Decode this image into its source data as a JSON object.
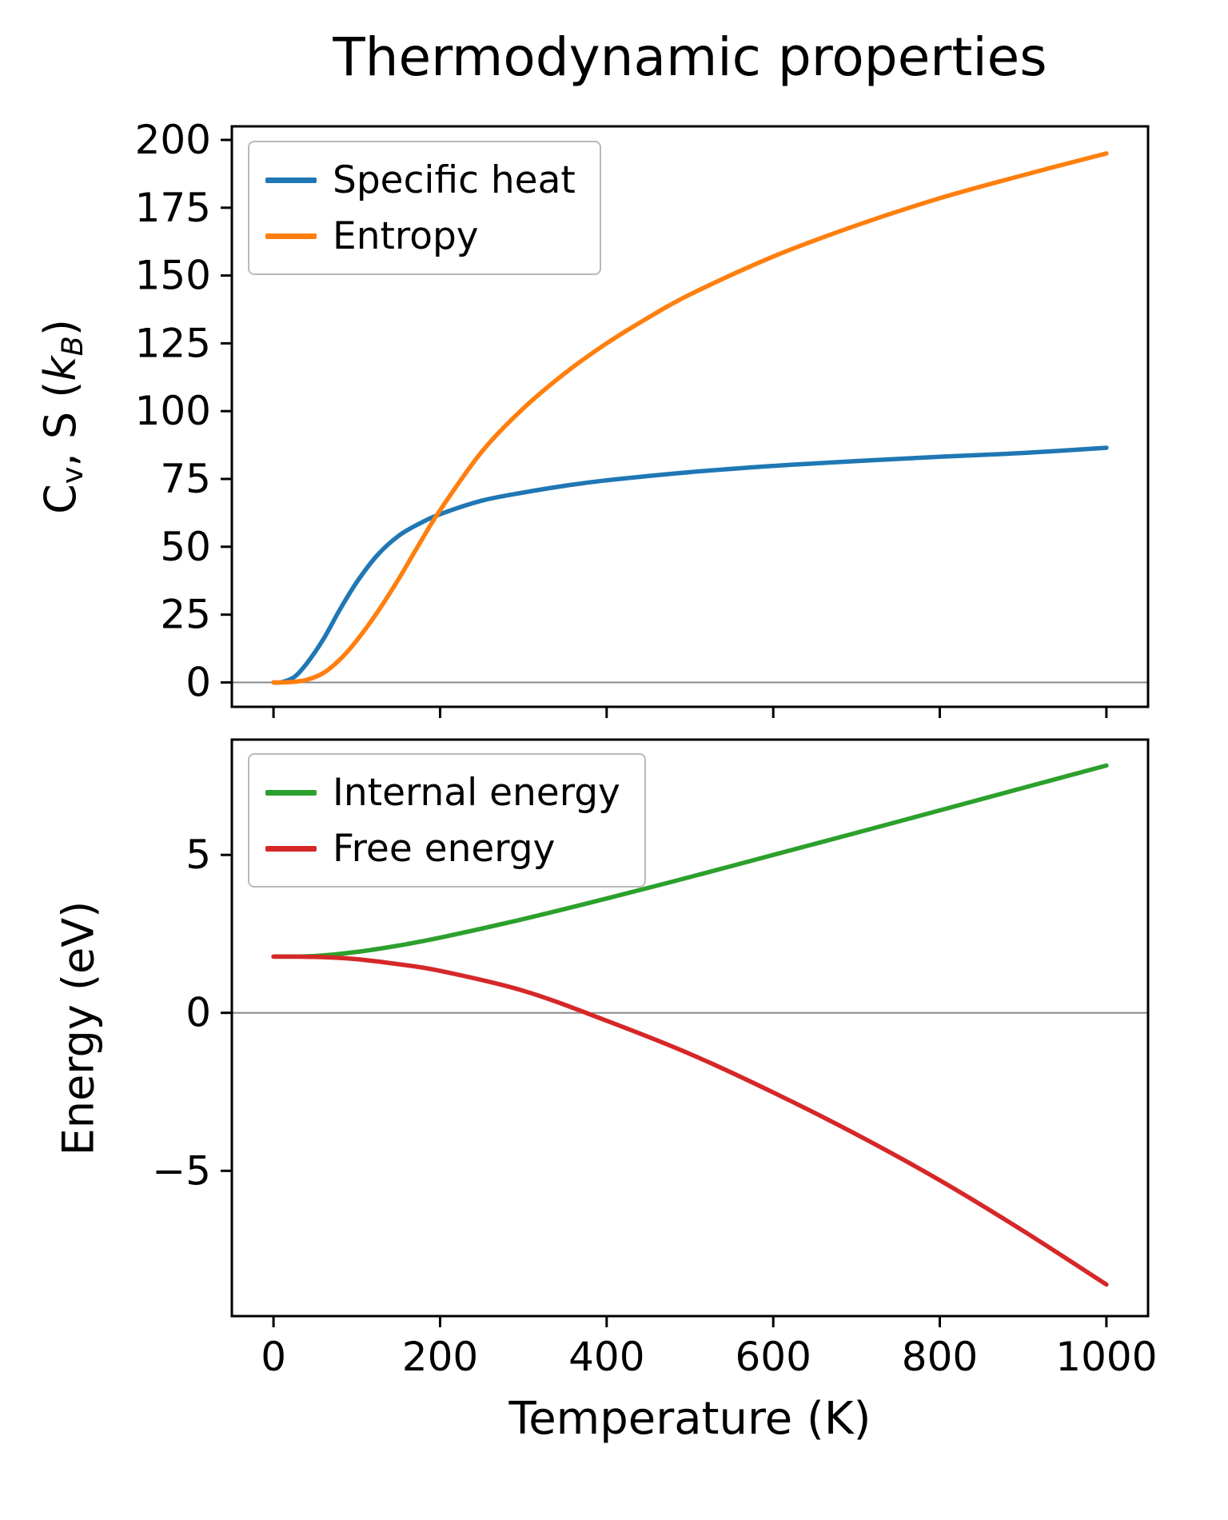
{
  "figure_title": "Thermodynamic properties",
  "chart_data": [
    {
      "type": "line",
      "title": "Thermodynamic properties",
      "xlabel": "",
      "ylabel": "Cv, S (kB)",
      "ylabel_segments": [
        {
          "t": "C"
        },
        {
          "t": "v",
          "sub": true
        },
        {
          "t": ", S ("
        },
        {
          "t": "k",
          "italic": true
        },
        {
          "t": "B",
          "sub": true,
          "italic": true
        },
        {
          "t": ")"
        }
      ],
      "xlim": [
        -50,
        1050
      ],
      "ylim": [
        -9,
        205
      ],
      "grid": false,
      "zero_line": true,
      "legend_position": "upper left",
      "xticks": {
        "values": [
          0,
          200,
          400,
          600,
          800,
          1000
        ],
        "labels": [
          "0",
          "200",
          "400",
          "600",
          "800",
          "1000"
        ],
        "labels_visible": false
      },
      "yticks": {
        "values": [
          0,
          25,
          50,
          75,
          100,
          125,
          150,
          175,
          200
        ],
        "labels": [
          "0",
          "25",
          "50",
          "75",
          "100",
          "125",
          "150",
          "175",
          "200"
        ]
      },
      "series": [
        {
          "name": "Specific heat",
          "color": "#1f77b4",
          "x": [
            0,
            10,
            25,
            40,
            60,
            80,
            100,
            125,
            150,
            175,
            200,
            250,
            300,
            350,
            400,
            500,
            600,
            700,
            800,
            900,
            1000
          ],
          "y": [
            0,
            0.1,
            2,
            7,
            16,
            27,
            37,
            47,
            54,
            58.5,
            62,
            67,
            70,
            72.5,
            74.5,
            77.5,
            79.8,
            81.6,
            83.2,
            84.6,
            86.5
          ]
        },
        {
          "name": "Entropy",
          "color": "#ff7f0e",
          "x": [
            0,
            20,
            40,
            60,
            80,
            100,
            125,
            150,
            175,
            200,
            250,
            300,
            350,
            400,
            450,
            500,
            600,
            700,
            800,
            900,
            1000
          ],
          "y": [
            0,
            0.1,
            1,
            3.5,
            8.5,
            15.5,
            26,
            38,
            51,
            63.5,
            85,
            101,
            114,
            125,
            134.5,
            143,
            157,
            168.5,
            178.5,
            187,
            195
          ]
        }
      ]
    },
    {
      "type": "line",
      "title": "",
      "xlabel": "Temperature (K)",
      "ylabel": "Energy (eV)",
      "ylabel_segments": [
        {
          "t": "Energy (eV)"
        }
      ],
      "xlim": [
        -50,
        1050
      ],
      "ylim": [
        -9.6,
        8.65
      ],
      "grid": false,
      "zero_line": true,
      "legend_position": "upper left",
      "xticks": {
        "values": [
          0,
          200,
          400,
          600,
          800,
          1000
        ],
        "labels": [
          "0",
          "200",
          "400",
          "600",
          "800",
          "1000"
        ],
        "labels_visible": true
      },
      "yticks": {
        "values": [
          -5,
          0,
          5
        ],
        "labels": [
          "−5",
          "0",
          "5"
        ]
      },
      "series": [
        {
          "name": "Internal energy",
          "color": "#2ca02c",
          "x": [
            0,
            50,
            100,
            150,
            200,
            300,
            400,
            500,
            600,
            700,
            800,
            900,
            1000
          ],
          "y": [
            1.78,
            1.8,
            1.93,
            2.13,
            2.38,
            2.97,
            3.62,
            4.3,
            5.0,
            5.7,
            6.41,
            7.12,
            7.83
          ]
        },
        {
          "name": "Free energy",
          "color": "#d62728",
          "x": [
            0,
            50,
            100,
            150,
            200,
            300,
            400,
            500,
            600,
            700,
            800,
            900,
            1000
          ],
          "y": [
            1.78,
            1.77,
            1.7,
            1.54,
            1.33,
            0.7,
            -0.25,
            -1.3,
            -2.52,
            -3.85,
            -5.3,
            -6.9,
            -8.6
          ]
        }
      ]
    }
  ]
}
